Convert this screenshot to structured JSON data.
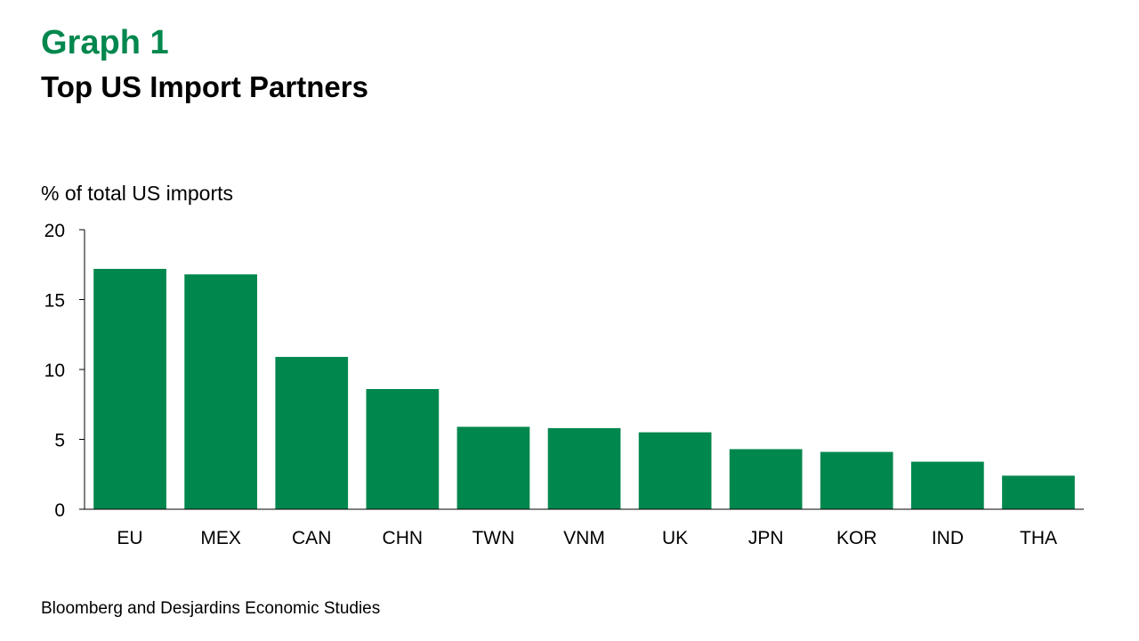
{
  "header": {
    "graph_label": "Graph 1",
    "title": "Top US Import Partners"
  },
  "y_unit_label": "% of total US imports",
  "source": "Bloomberg and Desjardins Economic Studies",
  "chart_data": {
    "type": "bar",
    "title": "Top US Import Partners",
    "ylabel": "% of total US imports",
    "xlabel": "",
    "categories": [
      "EU",
      "MEX",
      "CAN",
      "CHN",
      "TWN",
      "VNM",
      "UK",
      "JPN",
      "KOR",
      "IND",
      "THA"
    ],
    "values": [
      17.2,
      16.8,
      10.9,
      8.6,
      5.9,
      5.8,
      5.5,
      4.3,
      4.1,
      3.4,
      2.4
    ],
    "ylim": [
      0,
      20
    ],
    "yticks": [
      0,
      5,
      10,
      15,
      20
    ],
    "grid": false,
    "legend": "none",
    "bar_color": "#00874e"
  }
}
